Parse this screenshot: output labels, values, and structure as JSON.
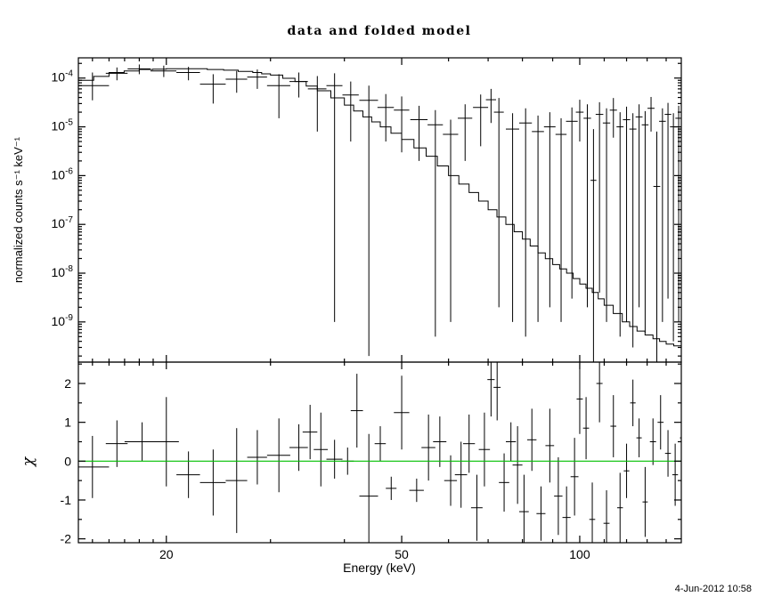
{
  "title": "data and folded model",
  "timestamp": "4-Jun-2012 10:58",
  "chart_data": {
    "type": "line",
    "title": "data and folded model",
    "xlabel": "Energy (keV)",
    "x_scale": "log",
    "x_range": [
      14.2,
      148.5
    ],
    "x_ticks": [
      20,
      50,
      100
    ],
    "frame_color": "#000000",
    "panels": [
      {
        "name": "spectrum",
        "ylabel": "normalized counts s⁻¹ keV⁻¹",
        "y_scale": "log",
        "y_range": [
          1.5e-10,
          0.00026
        ],
        "y_tick_exponents": [
          -4,
          -5,
          -6,
          -7,
          -8,
          -9
        ],
        "model_step": {
          "energies": [
            14.2,
            16,
            18,
            20,
            22,
            25,
            28,
            30,
            33,
            36,
            40,
            43,
            46,
            50,
            55,
            60,
            65,
            70,
            75,
            80,
            85,
            90,
            95,
            100,
            105,
            110,
            118,
            125,
            133,
            140,
            148.5
          ],
          "values": [
            9e-05,
            0.00013,
            0.00015,
            0.000155,
            0.000155,
            0.000145,
            0.00013,
            0.000115,
            8.5e-05,
            5.5e-05,
            2.8e-05,
            1.6e-05,
            1e-05,
            5.5e-06,
            2.5e-06,
            1e-06,
            4.5e-07,
            2e-07,
            1e-07,
            5e-08,
            2.6e-08,
            1.5e-08,
            1e-08,
            6e-09,
            4e-09,
            2.2e-09,
            1e-09,
            6.5e-10,
            4.5e-10,
            3.5e-10,
            3e-10
          ]
        },
        "points_format": [
          "energy",
          "energy_halfwidth",
          "value",
          "err_low_value",
          "err_high_value"
        ],
        "points": [
          [
            15,
            1,
            7e-05,
            3.5e-05,
            0.00013
          ],
          [
            16.5,
            0.7,
            0.000125,
            9e-05,
            0.000165
          ],
          [
            18,
            0.8,
            0.000155,
            0.00012,
            0.00019
          ],
          [
            19.8,
            1.0,
            0.00014,
            0.000105,
            0.00018
          ],
          [
            21.8,
            1.0,
            0.00013,
            9e-05,
            0.00017
          ],
          [
            24,
            1.2,
            7.5e-05,
            3e-05,
            0.00012
          ],
          [
            26.3,
            1.1,
            9.5e-05,
            5e-05,
            0.00014
          ],
          [
            28.5,
            1.1,
            0.000105,
            6e-05,
            0.00015
          ],
          [
            31,
            1.4,
            7e-05,
            1.5e-05,
            0.00012
          ],
          [
            33.5,
            1.2,
            8.5e-05,
            4e-05,
            0.00013
          ],
          [
            36,
            1.3,
            6e-05,
            8e-06,
            0.00011
          ],
          [
            38.5,
            1.2,
            7e-05,
            1e-09,
            0.000125
          ],
          [
            41,
            1.3,
            4.5e-05,
            5e-06,
            8.5e-05
          ],
          [
            44,
            1.6,
            3.5e-05,
            2e-10,
            7e-05
          ],
          [
            47,
            1.5,
            2.5e-05,
            5e-06,
            4.7e-05
          ],
          [
            50,
            1.5,
            2.2e-05,
            3e-06,
            4.2e-05
          ],
          [
            53.5,
            1.8,
            1.4e-05,
            2e-06,
            2.7e-05
          ],
          [
            57,
            1.7,
            1.1e-05,
            5e-10,
            2.2e-05
          ],
          [
            60.5,
            1.8,
            7e-06,
            1e-09,
            1.4e-05
          ],
          [
            64,
            1.8,
            1.5e-05,
            2e-06,
            2.9e-05
          ],
          [
            68,
            2,
            2.5e-05,
            4e-06,
            4.6e-05
          ],
          [
            70.8,
            1.4,
            3.6e-05,
            1.2e-05,
            6e-05
          ],
          [
            73,
            1.4,
            2e-05,
            2e-09,
            3.9e-05
          ],
          [
            77,
            2,
            9e-06,
            1e-09,
            1.9e-05
          ],
          [
            81,
            2,
            1.2e-05,
            5e-10,
            2.4e-05
          ],
          [
            85,
            2,
            8e-06,
            1e-09,
            1.7e-05
          ],
          [
            89,
            2,
            1e-05,
            2e-09,
            2e-05
          ],
          [
            93,
            2,
            7e-06,
            1e-09,
            1.5e-05
          ],
          [
            97,
            2.2,
            1.3e-05,
            3e-09,
            2.5e-05
          ],
          [
            100,
            1.5,
            2e-05,
            5e-06,
            3.6e-05
          ],
          [
            103,
            1.5,
            1.5e-05,
            2e-09,
            2.9e-05
          ],
          [
            105.5,
            1.2,
            8e-07,
            1e-10,
            9e-06
          ],
          [
            108,
            1.6,
            1.8e-05,
            4e-09,
            3.2e-05
          ],
          [
            111,
            1.6,
            1.2e-05,
            1e-09,
            2.4e-05
          ],
          [
            114,
            1.6,
            2.2e-05,
            6e-06,
            3.9e-05
          ],
          [
            117,
            1.6,
            1e-05,
            5e-10,
            2e-05
          ],
          [
            120,
            1.7,
            1.4e-05,
            1e-09,
            2.6e-05
          ],
          [
            123,
            1.7,
            9e-06,
            3e-10,
            1.9e-05
          ],
          [
            126,
            1.7,
            1.6e-05,
            2e-09,
            2.9e-05
          ],
          [
            129,
            1.7,
            1.1e-05,
            6e-10,
            2.1e-05
          ],
          [
            132,
            1.8,
            2.4e-05,
            8e-06,
            4.1e-05
          ],
          [
            135,
            1.8,
            6e-07,
            5e-11,
            8e-06
          ],
          [
            138,
            1.8,
            1.3e-05,
            1e-09,
            2.4e-05
          ],
          [
            141,
            1.8,
            1.8e-05,
            3e-09,
            3.1e-05
          ],
          [
            144,
            1.9,
            1e-05,
            4e-10,
            1.9e-05
          ],
          [
            147,
            1.9,
            1.5e-05,
            1e-09,
            2.7e-05
          ],
          [
            149.3,
            0.8,
            8e-06,
            2e-10,
            1.6e-05
          ]
        ]
      },
      {
        "name": "residuals",
        "ylabel": "χ",
        "y_scale": "linear",
        "y_range": [
          -2.1,
          2.55
        ],
        "y_ticks": [
          -2,
          -1,
          0,
          1,
          2
        ],
        "zero_line": {
          "y": 0,
          "color": "#00c000"
        },
        "points_format": [
          "energy",
          "energy_halfwidth",
          "chi",
          "chi_err"
        ],
        "points": [
          [
            15,
            1,
            -0.15,
            0.8
          ],
          [
            16.5,
            0.7,
            0.45,
            0.6
          ],
          [
            18.2,
            1.2,
            0.5,
            0.5
          ],
          [
            20,
            1,
            0.5,
            1.15
          ],
          [
            21.8,
            1,
            -0.35,
            0.6
          ],
          [
            24,
            1.2,
            -0.55,
            0.85
          ],
          [
            26.3,
            1.1,
            -0.5,
            1.35
          ],
          [
            28.5,
            1.1,
            0.1,
            0.7
          ],
          [
            31,
            1.4,
            0.15,
            0.95
          ],
          [
            33.5,
            1.2,
            0.35,
            0.6
          ],
          [
            35,
            1,
            0.75,
            0.7
          ],
          [
            36.5,
            1,
            0.3,
            0.95
          ],
          [
            38.5,
            1.2,
            0.05,
            0.5
          ],
          [
            40.5,
            1,
            0.0,
            0.35
          ],
          [
            42,
            1,
            1.3,
            0.95
          ],
          [
            44,
            1.6,
            -0.9,
            1.6
          ],
          [
            46,
            1,
            0.45,
            0.45
          ],
          [
            48,
            1,
            -0.7,
            0.3
          ],
          [
            50,
            1.5,
            1.25,
            0.95
          ],
          [
            53,
            1.5,
            -0.75,
            0.3
          ],
          [
            55.5,
            1.5,
            0.35,
            0.85
          ],
          [
            58,
            1.5,
            0.5,
            0.65
          ],
          [
            60.5,
            1.5,
            -0.5,
            0.65
          ],
          [
            63,
            1.5,
            -0.35,
            0.85
          ],
          [
            65,
            1.5,
            0.45,
            0.75
          ],
          [
            67,
            1.5,
            -1.2,
            0.85
          ],
          [
            69,
            1.5,
            0.3,
            0.95
          ],
          [
            70.8,
            1,
            2.1,
            0.95
          ],
          [
            72.5,
            1,
            1.9,
            0.85
          ],
          [
            74.5,
            1.5,
            -0.55,
            0.75
          ],
          [
            76.5,
            1.5,
            0.5,
            0.5
          ],
          [
            78.5,
            1.5,
            -0.1,
            1.0
          ],
          [
            80.5,
            1.5,
            -1.3,
            0.95
          ],
          [
            83,
            1.5,
            0.55,
            0.8
          ],
          [
            86,
            1.5,
            -1.35,
            0.7
          ],
          [
            89,
            1.5,
            0.4,
            0.95
          ],
          [
            92,
            1.5,
            -0.9,
            1.0
          ],
          [
            95,
            1.5,
            -1.45,
            0.8
          ],
          [
            98,
            1.5,
            -0.4,
            1.0
          ],
          [
            100,
            1.2,
            1.6,
            0.9
          ],
          [
            102.5,
            1.2,
            0.85,
            0.8
          ],
          [
            105,
            1.2,
            -1.5,
            0.95
          ],
          [
            108,
            1.3,
            2.0,
            1.0
          ],
          [
            111,
            1.3,
            -1.6,
            0.85
          ],
          [
            114,
            1.3,
            0.9,
            0.8
          ],
          [
            117,
            1.3,
            -1.2,
            0.9
          ],
          [
            120,
            1.3,
            -0.25,
            0.7
          ],
          [
            123,
            1.3,
            1.5,
            0.6
          ],
          [
            126,
            1.3,
            0.6,
            0.5
          ],
          [
            129,
            1.3,
            -1.05,
            0.9
          ],
          [
            133,
            1.6,
            0.5,
            0.6
          ],
          [
            137,
            1.6,
            1.0,
            0.7
          ],
          [
            141,
            1.6,
            0.2,
            0.6
          ],
          [
            145,
            1.6,
            -0.35,
            0.8
          ],
          [
            148.5,
            0.8,
            0.6,
            1.2
          ]
        ]
      }
    ]
  }
}
